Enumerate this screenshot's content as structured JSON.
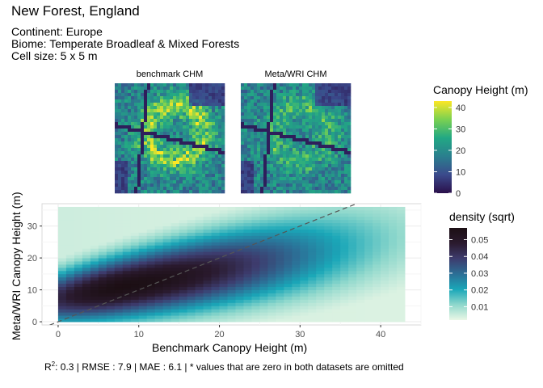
{
  "header": {
    "title": "New Forest, England",
    "continent": "Continent: Europe",
    "biome": "Biome: Temperate Broadleaf & Mixed Forests",
    "cell_size": "Cell size: 5 x 5 m"
  },
  "maps": {
    "left_label": "benchmark CHM",
    "right_label": "Meta/WRI CHM"
  },
  "canopy_legend": {
    "title": "Canopy Height (m)",
    "ticks": [
      "0",
      "10",
      "20",
      "30",
      "40"
    ],
    "tick_values": [
      0,
      10,
      20,
      30,
      40
    ],
    "range": [
      0,
      43
    ],
    "colors": [
      "#2a0f4a",
      "#3b4a8c",
      "#2a7f8e",
      "#22a884",
      "#7ad151",
      "#fde725"
    ]
  },
  "density_legend": {
    "title": "density (sqrt)",
    "ticks": [
      "0.05",
      "0.04",
      "0.03",
      "0.02",
      "0.01"
    ],
    "tick_values": [
      0.05,
      0.04,
      0.03,
      0.02,
      0.01
    ],
    "range": [
      0.002,
      0.057
    ],
    "colors": [
      "#eaf7e6",
      "#8fd8cc",
      "#1aa7b8",
      "#2c6f96",
      "#3d3c6e",
      "#2a1a2e",
      "#1c0f14"
    ]
  },
  "chart_data": {
    "type": "heatmap",
    "xlabel": "Benchmark Canopy Height (m)",
    "ylabel": "Meta/WRI Canopy Height (m)",
    "xlim": [
      -2,
      45
    ],
    "ylim": [
      -1,
      37
    ],
    "x_ticks": [
      "0",
      "10",
      "20",
      "30",
      "40"
    ],
    "x_tick_values": [
      0,
      10,
      20,
      30,
      40
    ],
    "y_ticks": [
      "0",
      "10",
      "20",
      "30"
    ],
    "y_tick_values": [
      0,
      10,
      20,
      30
    ],
    "grid": true,
    "data_extent": {
      "x": [
        0,
        43
      ],
      "y": [
        0,
        36
      ]
    },
    "density_peak": {
      "x": 8,
      "y": 11,
      "value": 0.057
    },
    "reference_line": {
      "slope": 1,
      "intercept": 0,
      "style": "dashed"
    }
  },
  "stats": {
    "r2_label": "R",
    "r2_sup": "2",
    "r2_rest": ":  0.3  |  RMSE :  7.9  |  MAE :  6.1  |  * values that are zero in both datasets are omitted"
  }
}
